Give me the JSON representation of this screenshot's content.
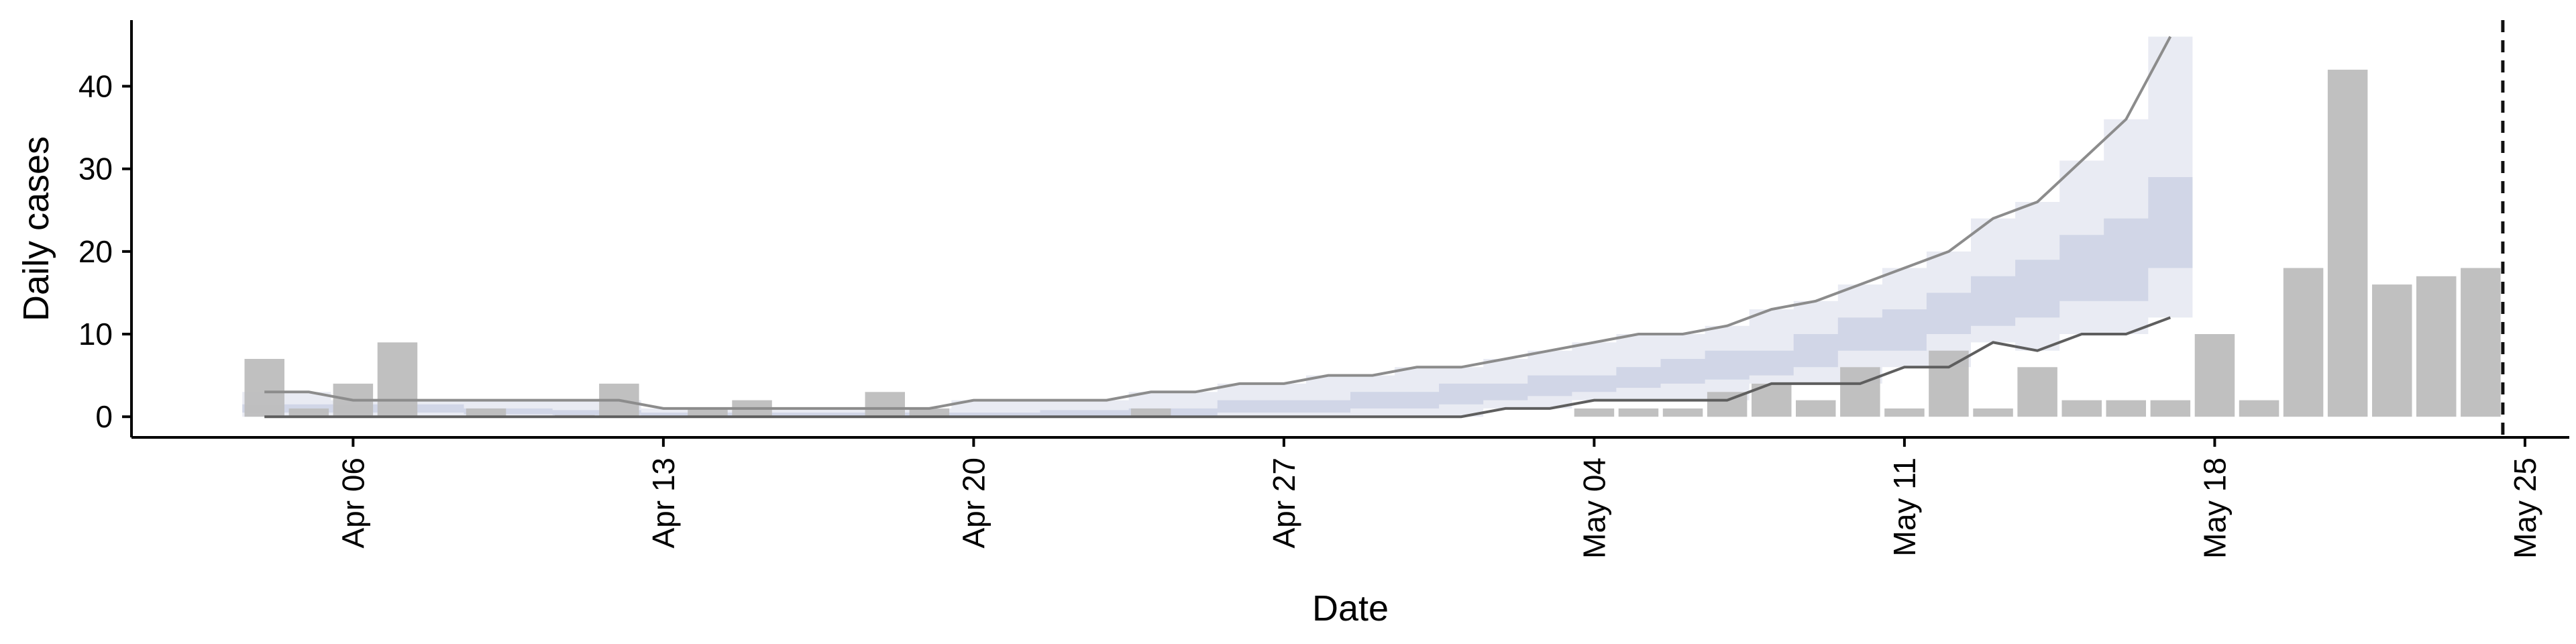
{
  "chart_data": {
    "type": "bar",
    "xlabel": "Date",
    "ylabel": "Daily cases",
    "xlim": [
      "2020-04-01",
      "2020-05-26"
    ],
    "ylim": [
      -2.5,
      48
    ],
    "x_ticks": [
      {
        "date": "2020-04-06",
        "label": "Apr 06"
      },
      {
        "date": "2020-04-13",
        "label": "Apr 13"
      },
      {
        "date": "2020-04-20",
        "label": "Apr 20"
      },
      {
        "date": "2020-04-27",
        "label": "Apr 27"
      },
      {
        "date": "2020-05-04",
        "label": "May 04"
      },
      {
        "date": "2020-05-11",
        "label": "May 11"
      },
      {
        "date": "2020-05-18",
        "label": "May 18"
      },
      {
        "date": "2020-05-25",
        "label": "May 25"
      }
    ],
    "y_ticks": [
      0,
      10,
      20,
      30,
      40
    ],
    "grid": false,
    "colors": {
      "bars": "#bdbdbd",
      "band_outer": "#e9ebf3",
      "band_inner": "#cdd2e4",
      "upper_line": "#8c8c8c",
      "lower_line": "#5e5e5e",
      "median_line": "#6a6a6a",
      "vline": "#111111"
    },
    "bars": [
      {
        "date": "2020-04-04",
        "value": 7
      },
      {
        "date": "2020-04-05",
        "value": 1
      },
      {
        "date": "2020-04-06",
        "value": 4
      },
      {
        "date": "2020-04-07",
        "value": 9
      },
      {
        "date": "2020-04-09",
        "value": 1
      },
      {
        "date": "2020-04-11",
        "value": 0.2
      },
      {
        "date": "2020-04-12",
        "value": 4
      },
      {
        "date": "2020-04-14",
        "value": 1
      },
      {
        "date": "2020-04-15",
        "value": 2
      },
      {
        "date": "2020-04-18",
        "value": 3
      },
      {
        "date": "2020-04-19",
        "value": 1
      },
      {
        "date": "2020-04-24",
        "value": 1
      },
      {
        "date": "2020-05-04",
        "value": 1
      },
      {
        "date": "2020-05-05",
        "value": 1
      },
      {
        "date": "2020-05-06",
        "value": 1
      },
      {
        "date": "2020-05-07",
        "value": 3
      },
      {
        "date": "2020-05-08",
        "value": 4
      },
      {
        "date": "2020-05-09",
        "value": 2
      },
      {
        "date": "2020-05-10",
        "value": 6
      },
      {
        "date": "2020-05-11",
        "value": 1
      },
      {
        "date": "2020-05-12",
        "value": 8
      },
      {
        "date": "2020-05-13",
        "value": 1
      },
      {
        "date": "2020-05-14",
        "value": 6
      },
      {
        "date": "2020-05-15",
        "value": 2
      },
      {
        "date": "2020-05-16",
        "value": 2
      },
      {
        "date": "2020-05-17",
        "value": 2
      },
      {
        "date": "2020-05-18",
        "value": 10
      },
      {
        "date": "2020-05-19",
        "value": 2
      },
      {
        "date": "2020-05-20",
        "value": 18
      },
      {
        "date": "2020-05-21",
        "value": 42
      },
      {
        "date": "2020-05-22",
        "value": 16
      },
      {
        "date": "2020-05-23",
        "value": 17
      },
      {
        "date": "2020-05-24",
        "value": 18
      }
    ],
    "band_outer": {
      "dates": [
        "2020-04-04",
        "2020-04-05",
        "2020-04-06",
        "2020-04-07",
        "2020-04-08",
        "2020-04-09",
        "2020-04-10",
        "2020-04-11",
        "2020-04-12",
        "2020-04-13",
        "2020-04-14",
        "2020-04-15",
        "2020-04-16",
        "2020-04-17",
        "2020-04-18",
        "2020-04-19",
        "2020-04-20",
        "2020-04-21",
        "2020-04-22",
        "2020-04-23",
        "2020-04-24",
        "2020-04-25",
        "2020-04-26",
        "2020-04-27",
        "2020-04-28",
        "2020-04-29",
        "2020-04-30",
        "2020-05-01",
        "2020-05-02",
        "2020-05-03",
        "2020-05-04",
        "2020-05-05",
        "2020-05-06",
        "2020-05-07",
        "2020-05-08",
        "2020-05-09",
        "2020-05-10",
        "2020-05-11",
        "2020-05-12",
        "2020-05-13",
        "2020-05-14",
        "2020-05-15",
        "2020-05-16",
        "2020-05-17"
      ],
      "upper": [
        3,
        3,
        2,
        2,
        2,
        2,
        2,
        2,
        2,
        1,
        1,
        1,
        1,
        1,
        1,
        1,
        2,
        2,
        2,
        2,
        3,
        3,
        4,
        4,
        5,
        5,
        6,
        6,
        7,
        8,
        9,
        10,
        10,
        11,
        13,
        14,
        16,
        18,
        20,
        24,
        26,
        31,
        36,
        46
      ],
      "lower": [
        0,
        0,
        0,
        0,
        0,
        0,
        0,
        0,
        0,
        0,
        0,
        0,
        0,
        0,
        0,
        0,
        0,
        0,
        0,
        0,
        0,
        0,
        0,
        0,
        0,
        0,
        0,
        0,
        1,
        1,
        2,
        2,
        2,
        2,
        4,
        4,
        4,
        6,
        6,
        9,
        8,
        10,
        10,
        12
      ]
    },
    "band_inner": {
      "dates": [
        "2020-04-04",
        "2020-04-05",
        "2020-04-06",
        "2020-04-07",
        "2020-04-08",
        "2020-04-09",
        "2020-04-10",
        "2020-04-11",
        "2020-04-12",
        "2020-04-13",
        "2020-04-14",
        "2020-04-15",
        "2020-04-16",
        "2020-04-17",
        "2020-04-18",
        "2020-04-19",
        "2020-04-20",
        "2020-04-21",
        "2020-04-22",
        "2020-04-23",
        "2020-04-24",
        "2020-04-25",
        "2020-04-26",
        "2020-04-27",
        "2020-04-28",
        "2020-04-29",
        "2020-04-30",
        "2020-05-01",
        "2020-05-02",
        "2020-05-03",
        "2020-05-04",
        "2020-05-05",
        "2020-05-06",
        "2020-05-07",
        "2020-05-08",
        "2020-05-09",
        "2020-05-10",
        "2020-05-11",
        "2020-05-12",
        "2020-05-13",
        "2020-05-14",
        "2020-05-15",
        "2020-05-16",
        "2020-05-17"
      ],
      "upper": [
        1.5,
        1.5,
        1.5,
        1.5,
        1.5,
        1,
        1,
        0.8,
        0.8,
        0.5,
        0.5,
        0.5,
        0.5,
        0.5,
        0.5,
        0.5,
        0.5,
        0.5,
        0.8,
        0.8,
        1,
        1,
        2,
        2,
        2,
        3,
        3,
        4,
        4,
        5,
        5,
        6,
        7,
        8,
        8,
        10,
        12,
        13,
        15,
        17,
        19,
        22,
        24,
        29
      ],
      "lower": [
        0.5,
        0.5,
        0.5,
        0.5,
        0.5,
        0.3,
        0.3,
        0.2,
        0.2,
        0,
        0,
        0,
        0,
        0,
        0,
        0,
        0,
        0,
        0,
        0,
        0,
        0,
        0.5,
        0.5,
        0.5,
        1,
        1,
        1.5,
        2,
        2.5,
        3,
        3.5,
        4,
        4.5,
        5,
        6,
        8,
        8,
        10,
        11,
        12,
        14,
        14,
        18
      ]
    },
    "vline": {
      "date": "2020-05-24T12:00",
      "style": "dashed"
    }
  }
}
